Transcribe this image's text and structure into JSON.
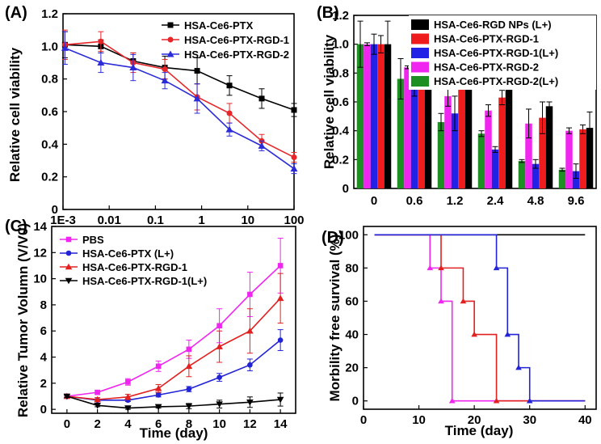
{
  "chart_data": [
    {
      "panel": "(A)",
      "type": "line",
      "title": "",
      "xlabel": "",
      "ylabel": "Relative cell viability",
      "xscale": "log",
      "xlim": [
        0.001,
        100
      ],
      "ylim": [
        0,
        1.2
      ],
      "xticks": [
        0.001,
        0.01,
        0.1,
        1,
        10,
        100
      ],
      "xtick_labels": [
        "1E-3",
        "0.01",
        "0.1",
        "1",
        "10",
        "100"
      ],
      "yticks": [
        0,
        0.2,
        0.4,
        0.6,
        0.8,
        1.0,
        1.2
      ],
      "ytick_labels": [
        "0",
        "0.2",
        "0.4",
        "0.6",
        "0.8",
        "1.0",
        "1.2"
      ],
      "legend_position": "top-right",
      "x": [
        0.0011,
        0.0066,
        0.033,
        0.16,
        0.8,
        4,
        20,
        100
      ],
      "series": [
        {
          "name": "HSA-Ce6-PTX",
          "color": "#000000",
          "marker": "square",
          "values": [
            1.01,
            1.0,
            0.91,
            0.87,
            0.85,
            0.76,
            0.68,
            0.61
          ],
          "errors": [
            0.08,
            0.04,
            0.05,
            0.07,
            0.08,
            0.06,
            0.06,
            0.04
          ]
        },
        {
          "name": "HSA-Ce6-PTX-RGD-1",
          "color": "#e8262a",
          "marker": "circle",
          "values": [
            1.01,
            1.03,
            0.9,
            0.86,
            0.69,
            0.59,
            0.42,
            0.32
          ],
          "errors": [
            0.09,
            0.06,
            0.06,
            0.06,
            0.08,
            0.06,
            0.04,
            0.03
          ]
        },
        {
          "name": "HSA-Ce6-PTX-RGD-2",
          "color": "#2b2bd9",
          "marker": "triangle",
          "values": [
            0.99,
            0.9,
            0.87,
            0.79,
            0.68,
            0.49,
            0.39,
            0.25
          ],
          "errors": [
            0.1,
            0.06,
            0.08,
            0.05,
            0.09,
            0.04,
            0.03,
            0.03
          ]
        }
      ]
    },
    {
      "panel": "(B)",
      "type": "bar",
      "title": "",
      "xlabel": "",
      "ylabel": "Relative cell viability",
      "ylim": [
        0,
        1.2
      ],
      "yticks": [
        0,
        0.2,
        0.4,
        0.6,
        0.8,
        1.0,
        1.2
      ],
      "ytick_labels": [
        "0",
        "0.2",
        "0.4",
        "0.6",
        "0.8",
        "1.0",
        "1.2"
      ],
      "categories": [
        "0",
        "0.6",
        "1.2",
        "2.4",
        "4.8",
        "9.6"
      ],
      "legend_position": "top-right",
      "series": [
        {
          "name": "HSA-Ce6-PTX-RGD-2(L+)",
          "color": "#1e8f23",
          "values": [
            1.0,
            0.76,
            0.46,
            0.38,
            0.19,
            0.13
          ],
          "errors": [
            0.16,
            0.14,
            0.06,
            0.02,
            0.01,
            0.01
          ]
        },
        {
          "name": "HSA-Ce6-PTX-RGD-2",
          "color": "#f026f0",
          "values": [
            1.0,
            0.84,
            0.64,
            0.54,
            0.45,
            0.4
          ],
          "errors": [
            0.01,
            0.01,
            0.07,
            0.04,
            0.1,
            0.02
          ]
        },
        {
          "name": "HSA-Ce6-PTX-RGD-1(L+)",
          "color": "#2222e6",
          "values": [
            1.0,
            0.71,
            0.52,
            0.27,
            0.17,
            0.12
          ],
          "errors": [
            0.07,
            0.07,
            0.12,
            0.02,
            0.03,
            0.05
          ]
        },
        {
          "name": "HSA-Ce6-PTX-RGD-1",
          "color": "#ee1c1c",
          "values": [
            1.0,
            0.89,
            0.79,
            0.63,
            0.49,
            0.41
          ],
          "errors": [
            0.06,
            0.07,
            0.07,
            0.05,
            0.11,
            0.03
          ]
        },
        {
          "name": "HSA-Ce6-RGD NPs (L+)",
          "color": "#000000",
          "values": [
            1.0,
            0.98,
            0.96,
            0.74,
            0.57,
            0.42
          ],
          "errors": [
            0.16,
            0.15,
            0.1,
            0.1,
            0.03,
            0.11
          ]
        }
      ],
      "legend_order": [
        "HSA-Ce6-RGD NPs (L+)",
        "HSA-Ce6-PTX-RGD-1",
        "HSA-Ce6-PTX-RGD-1(L+)",
        "HSA-Ce6-PTX-RGD-2",
        "HSA-Ce6-PTX-RGD-2(L+)"
      ]
    },
    {
      "panel": "(C)",
      "type": "line",
      "title": "",
      "xlabel": "Time (day)",
      "ylabel": "Relative Tumor Volumn (V/V0)",
      "xlim": [
        -1,
        15
      ],
      "ylim": [
        -0.3,
        14
      ],
      "xticks": [
        0,
        2,
        4,
        6,
        8,
        10,
        12,
        14
      ],
      "xtick_labels": [
        "0",
        "2",
        "4",
        "6",
        "8",
        "10",
        "12",
        "14"
      ],
      "yticks": [
        0,
        2,
        4,
        6,
        8,
        10,
        12,
        14
      ],
      "ytick_labels": [
        "0",
        "2",
        "4",
        "6",
        "8",
        "10",
        "12",
        "14"
      ],
      "legend_position": "top-left",
      "x": [
        0,
        2,
        4,
        6,
        8,
        10,
        12,
        14
      ],
      "series": [
        {
          "name": "PBS",
          "color": "#f026f0",
          "marker": "square",
          "values": [
            1.0,
            1.3,
            2.1,
            3.3,
            4.6,
            6.4,
            8.8,
            11.0
          ],
          "errors": [
            0.1,
            0.15,
            0.25,
            0.4,
            0.7,
            1.3,
            1.7,
            2.1
          ]
        },
        {
          "name": "HSA-Ce6-PTX (L+)",
          "color": "#2222d6",
          "marker": "circle",
          "values": [
            1.0,
            0.7,
            0.7,
            1.1,
            1.55,
            2.45,
            3.4,
            5.3
          ],
          "errors": [
            0.1,
            0.1,
            0.1,
            0.15,
            0.2,
            0.3,
            0.45,
            0.8
          ]
        },
        {
          "name": "HSA-Ce6-PTX-RGD-1",
          "color": "#e32020",
          "marker": "triangle",
          "values": [
            1.0,
            0.75,
            0.95,
            1.6,
            3.3,
            4.8,
            6.0,
            8.5
          ],
          "errors": [
            0.1,
            0.15,
            0.2,
            0.3,
            0.8,
            1.2,
            1.7,
            1.9
          ]
        },
        {
          "name": "HSA-Ce6-PTX-RGD-1(L+)",
          "color": "#000000",
          "marker": "triangle-down",
          "values": [
            1.0,
            0.3,
            0.1,
            0.2,
            0.25,
            0.4,
            0.55,
            0.75
          ],
          "errors": [
            0.1,
            0.1,
            0.1,
            0.1,
            0.2,
            0.3,
            0.4,
            0.5
          ]
        }
      ]
    },
    {
      "panel": "(D)",
      "type": "line",
      "title": "",
      "xlabel": "Time (day)",
      "ylabel": "Morbility free survival (%)",
      "xlim": [
        0,
        42
      ],
      "ylim": [
        -5,
        105
      ],
      "xticks": [
        0,
        10,
        20,
        30,
        40
      ],
      "xtick_labels": [
        "0",
        "10",
        "20",
        "30",
        "40"
      ],
      "yticks": [
        0,
        20,
        40,
        60,
        80,
        100
      ],
      "ytick_labels": [
        "0",
        "20",
        "40",
        "60",
        "80",
        "100"
      ],
      "series": [
        {
          "name": "black",
          "color": "#000000",
          "step": true,
          "x": [
            2,
            40
          ],
          "values": [
            100,
            100
          ],
          "markers": []
        },
        {
          "name": "magenta",
          "color": "#f026f0",
          "step": true,
          "x": [
            2,
            12,
            14,
            16,
            40
          ],
          "values": [
            100,
            80,
            60,
            0,
            0
          ],
          "markers": [
            [
              12,
              80
            ],
            [
              14,
              60
            ],
            [
              16,
              0
            ]
          ]
        },
        {
          "name": "red",
          "color": "#e32020",
          "step": true,
          "x": [
            2,
            14,
            18,
            20,
            24,
            40
          ],
          "values": [
            100,
            80,
            60,
            40,
            0,
            0
          ],
          "markers": [
            [
              14,
              80
            ],
            [
              18,
              60
            ],
            [
              20,
              40
            ],
            [
              24,
              0
            ]
          ]
        },
        {
          "name": "blue",
          "color": "#2222d6",
          "step": true,
          "x": [
            2,
            24,
            26,
            28,
            30,
            40
          ],
          "values": [
            100,
            80,
            40,
            20,
            0,
            0
          ],
          "markers": [
            [
              24,
              80
            ],
            [
              26,
              40
            ],
            [
              28,
              20
            ],
            [
              30,
              0
            ]
          ]
        }
      ]
    }
  ]
}
